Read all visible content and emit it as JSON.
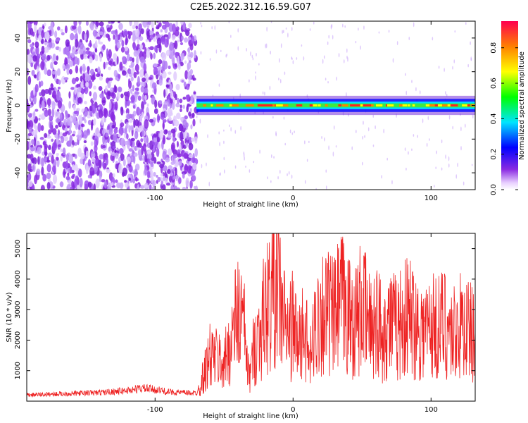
{
  "title": "C2E5.2022.312.16.59.G07",
  "colors": {
    "snr_line": "#ee2222",
    "axes": "#000000",
    "spectrogram_noise": "#8a2be2"
  },
  "chart_data": [
    {
      "type": "heatmap",
      "xlabel": "Height of straight line (km)",
      "ylabel": "Frequency (Hz)",
      "xlim": [
        -193,
        132
      ],
      "ylim": [
        -50,
        50
      ],
      "xticks": [
        -100,
        0,
        100
      ],
      "xtick_labels": [
        "-100",
        "0",
        "100"
      ],
      "yticks": [
        -40,
        -20,
        0,
        20,
        40
      ],
      "ytick_labels": [
        "-40",
        "-20",
        "0",
        "20",
        "40"
      ],
      "colorbar": {
        "label": "Normalized spectral amplitude",
        "range": [
          0,
          0.95
        ],
        "ticks": [
          0.0,
          0.2,
          0.4,
          0.6,
          0.8
        ],
        "tick_labels": [
          "0.0",
          "0.2",
          "0.4",
          "0.6",
          "0.8"
        ],
        "colormap": "rainbow (violet to red)"
      },
      "regions": [
        {
          "x_range": [
            -193,
            -70
          ],
          "description": "broadband noise",
          "amplitude": 0.1
        },
        {
          "x_range": [
            -70,
            132
          ],
          "description": "signal band near 0 Hz",
          "center_hz": 0,
          "half_width_hz": 3,
          "peak_amplitude": 0.9
        }
      ],
      "grid": false
    },
    {
      "type": "line",
      "xlabel": "Height of straight line (km)",
      "ylabel": "SNR (10 * v/v)",
      "xlim": [
        -193,
        132
      ],
      "ylim": [
        0,
        5500
      ],
      "xticks": [
        -100,
        0,
        100
      ],
      "xtick_labels": [
        "-100",
        "0",
        "100"
      ],
      "yticks": [
        1000,
        2000,
        3000,
        4000,
        5000
      ],
      "ytick_labels": [
        "1000",
        "2000",
        "3000",
        "4000",
        "5000"
      ],
      "grid": false,
      "series": [
        {
          "x": [
            -193,
            -180,
            -160,
            -140,
            -120,
            -110,
            -100,
            -90,
            -80,
            -70,
            -66,
            -60,
            -55,
            -50,
            -45,
            -40,
            -36,
            -32,
            -28,
            -24,
            -20,
            -16,
            -12,
            -8,
            -4,
            0,
            4,
            8,
            12,
            16,
            20,
            25,
            30,
            35,
            40,
            45,
            50,
            55,
            60,
            65,
            70,
            75,
            80,
            85,
            90,
            95,
            100,
            105,
            110,
            115,
            120,
            125,
            130
          ],
          "y": [
            200,
            220,
            250,
            280,
            350,
            420,
            380,
            300,
            280,
            260,
            700,
            1500,
            1400,
            1200,
            2000,
            2900,
            2600,
            700,
            1800,
            2300,
            3000,
            3400,
            4200,
            3000,
            2200,
            2500,
            1800,
            2600,
            1200,
            2400,
            3000,
            2900,
            2700,
            3300,
            2800,
            2600,
            3100,
            2500,
            2700,
            2300,
            2600,
            2400,
            2700,
            2800,
            2500,
            2300,
            2500,
            2400,
            2600,
            2200,
            2400,
            2500,
            2200
          ]
        }
      ]
    }
  ]
}
